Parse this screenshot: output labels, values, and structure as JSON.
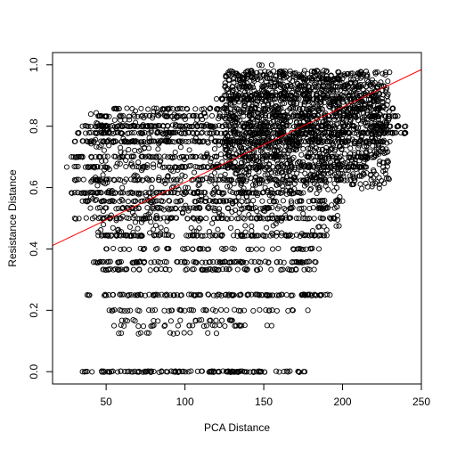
{
  "chart_data": {
    "type": "scatter",
    "title": "",
    "xlabel": "PCA Distance",
    "ylabel": "Resistance Distance",
    "xlim": [
      16,
      250
    ],
    "ylim": [
      -0.04,
      1.04
    ],
    "x_ticks": [
      50,
      100,
      150,
      200,
      250
    ],
    "y_ticks": [
      0.0,
      0.2,
      0.4,
      0.6,
      0.8,
      1.0
    ],
    "x_tick_labels": [
      "50",
      "100",
      "150",
      "200",
      "250"
    ],
    "y_tick_labels": [
      "0.0",
      "0.2",
      "0.4",
      "0.6",
      "0.8",
      "1.0"
    ],
    "grid": false,
    "legend": "none",
    "marker": "open-circle",
    "point_color": "#000000",
    "regression_line": {
      "color": "#ff0000",
      "intercept": 0.372,
      "slope": 0.00245
    },
    "series": [
      {
        "bands": [
          {
            "y": 0.0,
            "x_min": 35,
            "x_max": 176,
            "density": 0.9
          },
          {
            "y": 0.125,
            "x_min": 58,
            "x_max": 120,
            "density": 0.2
          },
          {
            "y": 0.15,
            "x_min": 55,
            "x_max": 155,
            "density": 0.3
          },
          {
            "y": 0.167,
            "x_min": 60,
            "x_max": 130,
            "density": 0.3
          },
          {
            "y": 0.2,
            "x_min": 52,
            "x_max": 178,
            "density": 0.4
          },
          {
            "y": 0.25,
            "x_min": 38,
            "x_max": 192,
            "density": 0.9
          },
          {
            "y": 0.333,
            "x_min": 48,
            "x_max": 182,
            "density": 0.6
          },
          {
            "y": 0.357,
            "x_min": 42,
            "x_max": 183,
            "density": 0.8
          },
          {
            "y": 0.4,
            "x_min": 50,
            "x_max": 185,
            "density": 0.4
          },
          {
            "y": 0.444,
            "x_min": 45,
            "x_max": 190,
            "density": 0.9
          },
          {
            "y": 0.5,
            "x_min": 30,
            "x_max": 195,
            "density": 0.7
          },
          {
            "y": 0.533,
            "x_min": 40,
            "x_max": 195,
            "density": 0.6
          },
          {
            "y": 0.556,
            "x_min": 35,
            "x_max": 200,
            "density": 0.6
          },
          {
            "y": 0.583,
            "x_min": 28,
            "x_max": 175,
            "density": 0.8
          },
          {
            "y": 0.625,
            "x_min": 30,
            "x_max": 205,
            "density": 0.7
          },
          {
            "y": 0.667,
            "x_min": 25,
            "x_max": 215,
            "density": 0.8
          },
          {
            "y": 0.7,
            "x_min": 28,
            "x_max": 220,
            "density": 0.8
          },
          {
            "y": 0.75,
            "x_min": 30,
            "x_max": 230,
            "density": 0.9
          },
          {
            "y": 0.778,
            "x_min": 32,
            "x_max": 240,
            "density": 0.9
          },
          {
            "y": 0.8,
            "x_min": 35,
            "x_max": 240,
            "density": 0.9
          },
          {
            "y": 0.833,
            "x_min": 45,
            "x_max": 235,
            "density": 0.7
          },
          {
            "y": 0.857,
            "x_min": 55,
            "x_max": 232,
            "density": 0.6
          },
          {
            "y": 0.889,
            "x_min": 120,
            "x_max": 225,
            "density": 0.6
          },
          {
            "y": 0.9,
            "x_min": 125,
            "x_max": 222,
            "density": 0.6
          },
          {
            "y": 0.929,
            "x_min": 130,
            "x_max": 215,
            "density": 0.5
          },
          {
            "y": 0.955,
            "x_min": 135,
            "x_max": 200,
            "density": 0.4
          },
          {
            "y": 0.98,
            "x_min": 140,
            "x_max": 190,
            "density": 0.2
          },
          {
            "y": 1.0,
            "x_min": 147,
            "x_max": 155,
            "density": 0.1
          }
        ],
        "dense_region": {
          "x_min": 125,
          "x_max": 230,
          "y_min": 0.58,
          "y_max": 0.98
        }
      }
    ]
  }
}
